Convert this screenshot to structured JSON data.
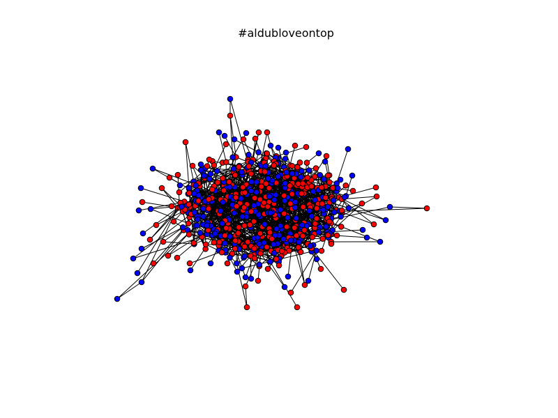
{
  "title": "#aldubloveontop",
  "graph": {
    "type": "network",
    "node_colors": {
      "primary": "#ff0000",
      "secondary": "#0000ff"
    },
    "edge_color": "#000000"
  }
}
